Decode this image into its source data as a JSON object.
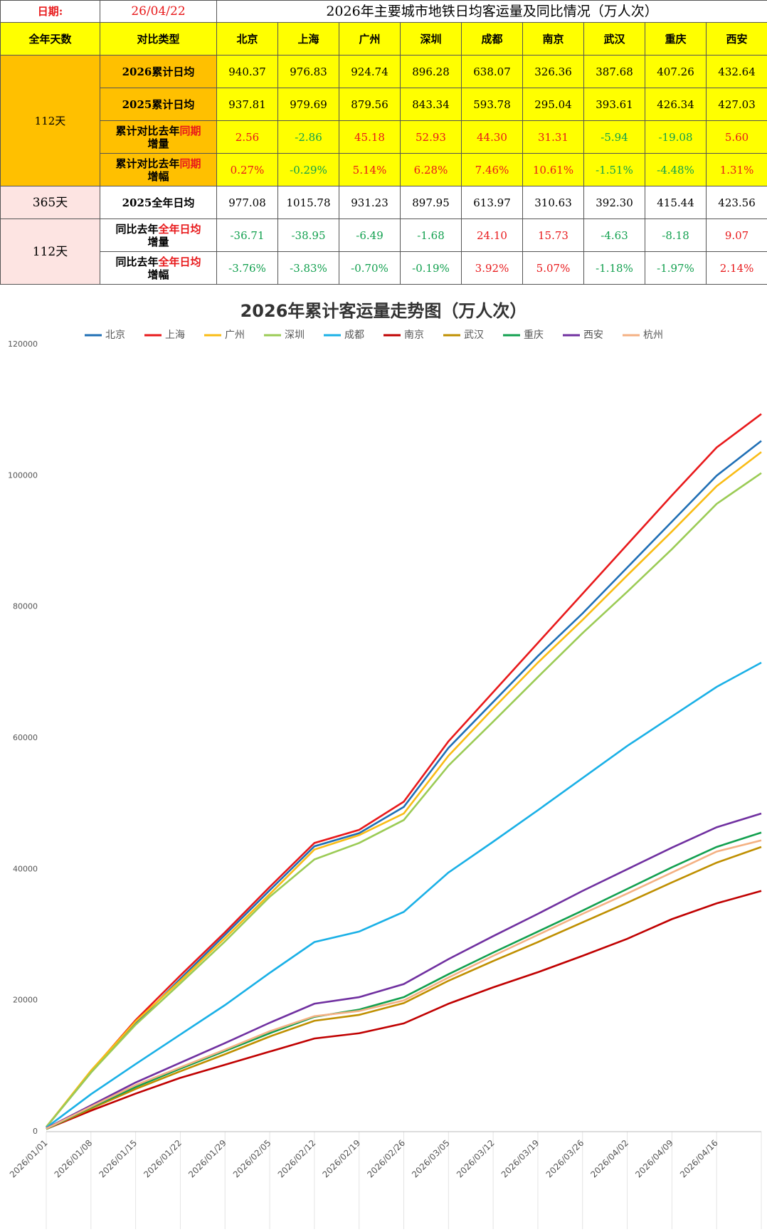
{
  "table": {
    "date_label": "日期:",
    "date": "26/04/22",
    "title": "2026年主要城市地铁日均客运量及同比情况（万人次）",
    "headers": [
      "全年天数",
      "对比类型",
      "北京",
      "上海",
      "广州",
      "深圳",
      "成都",
      "南京",
      "武汉",
      "重庆",
      "西安"
    ],
    "groups": [
      {
        "days": "112天",
        "rows": [
          {
            "type": [
              "2026累计日均"
            ],
            "values": [
              "940.37",
              "976.83",
              "924.74",
              "896.28",
              "638.07",
              "326.36",
              "387.68",
              "407.26",
              "432.64"
            ]
          },
          {
            "type": [
              "2025累计日均"
            ],
            "values": [
              "937.81",
              "979.69",
              "879.56",
              "843.34",
              "593.78",
              "295.04",
              "393.61",
              "426.34",
              "427.03"
            ]
          },
          {
            "type": [
              "累计对比去年",
              "同期",
              "增量"
            ],
            "values": [
              "2.56",
              "-2.86",
              "45.18",
              "52.93",
              "44.30",
              "31.31",
              "-5.94",
              "-19.08",
              "5.60"
            ]
          },
          {
            "type": [
              "累计对比去年",
              "同期",
              "增幅"
            ],
            "values": [
              "0.27%",
              "-0.29%",
              "5.14%",
              "6.28%",
              "7.46%",
              "10.61%",
              "-1.51%",
              "-4.48%",
              "1.31%"
            ]
          }
        ]
      },
      {
        "days": "365天",
        "rows": [
          {
            "type": [
              "2025全年日均"
            ],
            "values": [
              "977.08",
              "1015.78",
              "931.23",
              "897.95",
              "613.97",
              "310.63",
              "392.30",
              "415.44",
              "423.56"
            ]
          }
        ]
      },
      {
        "days": "112天",
        "rows": [
          {
            "type": [
              "同比去年",
              "全年日均",
              "增量"
            ],
            "values": [
              "-36.71",
              "-38.95",
              "-6.49",
              "-1.68",
              "24.10",
              "15.73",
              "-4.63",
              "-8.18",
              "9.07"
            ]
          },
          {
            "type": [
              "同比去年",
              "全年日均",
              "增幅"
            ],
            "values": [
              "-3.76%",
              "-3.83%",
              "-0.70%",
              "-0.19%",
              "3.92%",
              "5.07%",
              "-1.18%",
              "-1.97%",
              "2.14%"
            ]
          }
        ]
      }
    ]
  },
  "chart_data": {
    "type": "line",
    "title": "2026年累计客运量走势图（万人次）",
    "x": [
      "2026/01/01",
      "2026/01/08",
      "2026/01/15",
      "2026/01/22",
      "2026/01/29",
      "2026/02/05",
      "2026/02/12",
      "2026/02/19",
      "2026/02/26",
      "2026/03/05",
      "2026/03/12",
      "2026/03/19",
      "2026/03/26",
      "2026/04/02",
      "2026/04/09",
      "2026/04/16",
      null
    ],
    "ylim": [
      0,
      120000
    ],
    "yticks": [
      0,
      20000,
      40000,
      60000,
      80000,
      100000,
      120000
    ],
    "grid": false,
    "legend": "top",
    "series": [
      {
        "name": "北京",
        "color": "#1f6fb5",
        "values": [
          700,
          9000,
          16500,
          23300,
          30000,
          36800,
          43500,
          45500,
          49500,
          58500,
          65500,
          72500,
          79000,
          86000,
          93000,
          100000,
          105300
        ]
      },
      {
        "name": "上海",
        "color": "#e8191b",
        "values": [
          700,
          9200,
          17000,
          23800,
          30400,
          37300,
          44000,
          46000,
          50300,
          59500,
          67000,
          74500,
          82000,
          89500,
          97000,
          104300,
          109400
        ]
      },
      {
        "name": "广州",
        "color": "#f9bc15",
        "values": [
          700,
          9300,
          16800,
          23000,
          29500,
          36200,
          43000,
          45200,
          48500,
          57300,
          64500,
          71500,
          78000,
          84800,
          91500,
          98400,
          103600
        ]
      },
      {
        "name": "深圳",
        "color": "#9bcb55",
        "values": [
          700,
          9000,
          16300,
          22600,
          29000,
          35800,
          41500,
          44000,
          47500,
          55800,
          62500,
          69300,
          76000,
          82300,
          88800,
          95700,
          100400
        ]
      },
      {
        "name": "成都",
        "color": "#1ab0e6",
        "values": [
          600,
          5700,
          10300,
          14800,
          19300,
          24200,
          28900,
          30500,
          33500,
          39500,
          44200,
          49000,
          53900,
          58800,
          63300,
          67800,
          71500
        ]
      },
      {
        "name": "南京",
        "color": "#c00000",
        "values": [
          400,
          3200,
          5800,
          8200,
          10200,
          12200,
          14200,
          15000,
          16500,
          19500,
          22000,
          24300,
          26800,
          29400,
          32400,
          34800,
          36700
        ]
      },
      {
        "name": "武汉",
        "color": "#bf8f00",
        "values": [
          400,
          3500,
          6500,
          9200,
          11800,
          14500,
          16900,
          17800,
          19600,
          23000,
          26000,
          28900,
          31900,
          34900,
          38000,
          41000,
          43400
        ]
      },
      {
        "name": "重庆",
        "color": "#12a04f",
        "values": [
          400,
          3700,
          6800,
          9600,
          12300,
          15000,
          17500,
          18600,
          20500,
          24000,
          27300,
          30500,
          33700,
          37000,
          40300,
          43400,
          45600
        ]
      },
      {
        "name": "西安",
        "color": "#7030a0",
        "values": [
          500,
          4000,
          7500,
          10500,
          13500,
          16600,
          19500,
          20500,
          22500,
          26300,
          29800,
          33200,
          36700,
          40000,
          43300,
          46400,
          48500
        ]
      },
      {
        "name": "杭州",
        "color": "#f4b183",
        "values": [
          450,
          3800,
          7100,
          9800,
          12500,
          15300,
          17600,
          18400,
          20000,
          23500,
          26800,
          30000,
          33200,
          36300,
          39500,
          42700,
          44400
        ]
      }
    ]
  }
}
